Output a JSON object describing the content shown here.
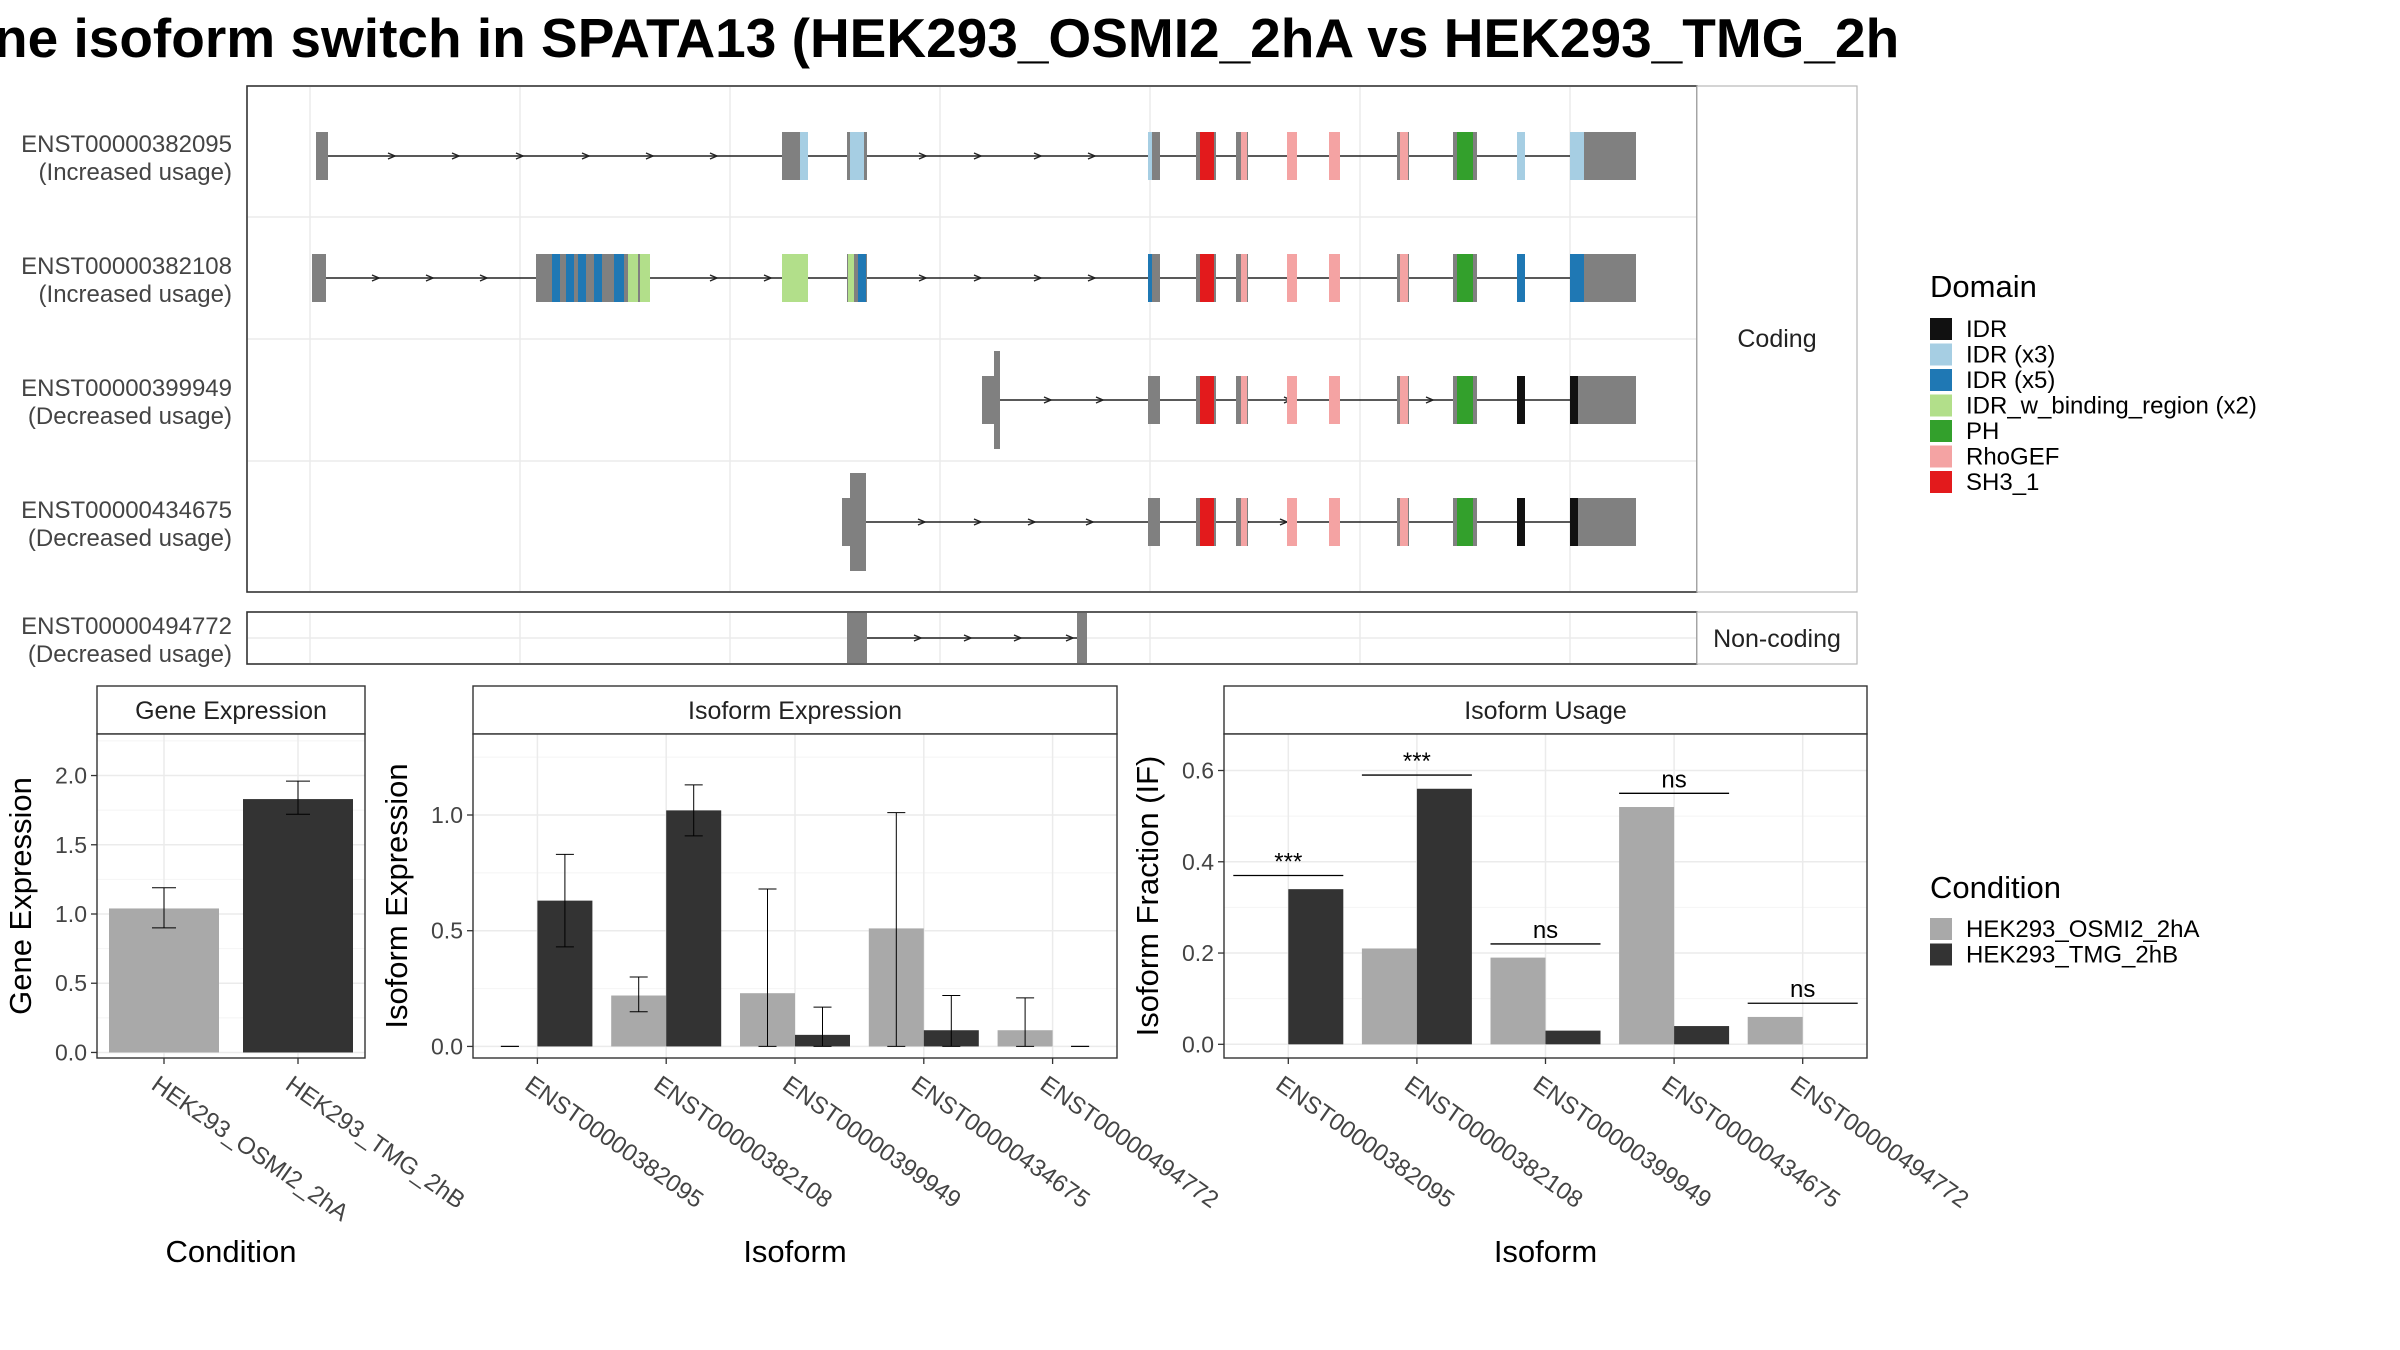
{
  "title": "ne isoform switch in SPATA13 (HEK293_OSMI2_2hA vs HEK293_TMG_2h",
  "colors": {
    "condition_a": "#a9a9a9",
    "condition_b": "#333333",
    "exon": "#808080",
    "IDR": "#111111",
    "IDR (x3)": "#a6cee3",
    "IDR (x5)": "#1f78b4",
    "IDR_w_binding_region (x2)": "#b2df8a",
    "PH": "#33a02c",
    "RhoGEF": "#f4a3a3",
    "SH3_1": "#e31a1c"
  },
  "conditions": [
    "HEK293_OSMI2_2hA",
    "HEK293_TMG_2hB"
  ],
  "legend": {
    "domain_title": "Domain",
    "domain_items": [
      "IDR",
      "IDR (x3)",
      "IDR (x5)",
      "IDR_w_binding_region (x2)",
      "PH",
      "RhoGEF",
      "SH3_1"
    ],
    "condition_title": "Condition"
  },
  "structure": {
    "facet_coding": "Coding",
    "facet_noncoding": "Non-coding",
    "transcripts": [
      {
        "id": "ENST00000382095",
        "usage": "(Increased usage)",
        "group": "coding"
      },
      {
        "id": "ENST00000382108",
        "usage": "(Increased usage)",
        "group": "coding"
      },
      {
        "id": "ENST00000399949",
        "usage": "(Decreased usage)",
        "group": "coding"
      },
      {
        "id": "ENST00000434675",
        "usage": "(Decreased usage)",
        "group": "coding"
      },
      {
        "id": "ENST00000494772",
        "usage": "(Decreased usage)",
        "group": "noncoding"
      }
    ]
  },
  "chart_data": [
    {
      "type": "bar",
      "title": "Gene Expression",
      "xlabel": "Condition",
      "ylabel": "Gene Expression",
      "ylim": [
        -0.04,
        2.3
      ],
      "yticks": [
        "0.0",
        "0.5",
        "1.0",
        "1.5",
        "2.0"
      ],
      "categories": [
        "HEK293_OSMI2_2hA",
        "HEK293_TMG_2hB"
      ],
      "values": [
        1.04,
        1.83
      ],
      "error_low": [
        0.9,
        1.72
      ],
      "error_high": [
        1.19,
        1.96
      ]
    },
    {
      "type": "bar",
      "title": "Isoform Expression",
      "xlabel": "Isoform",
      "ylabel": "Isoform Expression",
      "ylim": [
        -0.05,
        1.35
      ],
      "yticks": [
        "0.0",
        "0.5",
        "1.0"
      ],
      "categories": [
        "ENST00000382095",
        "ENST00000382108",
        "ENST00000399949",
        "ENST00000434675",
        "ENST00000494772"
      ],
      "series": [
        {
          "name": "HEK293_OSMI2_2hA",
          "values": [
            0.0,
            0.22,
            0.23,
            0.51,
            0.07
          ],
          "error_low": [
            0.0,
            0.15,
            0.0,
            0.0,
            0.0
          ],
          "error_high": [
            0.0,
            0.3,
            0.68,
            1.01,
            0.21
          ]
        },
        {
          "name": "HEK293_TMG_2hB",
          "values": [
            0.63,
            1.02,
            0.05,
            0.07,
            0.0
          ],
          "error_low": [
            0.43,
            0.91,
            0.0,
            0.0,
            0.0
          ],
          "error_high": [
            0.83,
            1.13,
            0.17,
            0.22,
            0.0
          ]
        }
      ]
    },
    {
      "type": "bar",
      "title": "Isoform Usage",
      "xlabel": "Isoform",
      "ylabel": "Isoform Fraction (IF)",
      "ylim": [
        -0.03,
        0.68
      ],
      "yticks": [
        "0.0",
        "0.2",
        "0.4",
        "0.6"
      ],
      "categories": [
        "ENST00000382095",
        "ENST00000382108",
        "ENST00000399949",
        "ENST00000434675",
        "ENST00000494772"
      ],
      "series": [
        {
          "name": "HEK293_OSMI2_2hA",
          "values": [
            0.0,
            0.21,
            0.19,
            0.52,
            0.06
          ]
        },
        {
          "name": "HEK293_TMG_2hB",
          "values": [
            0.34,
            0.56,
            0.03,
            0.04,
            0.0
          ]
        }
      ],
      "significance": [
        {
          "label": "***",
          "y": 0.37
        },
        {
          "label": "***",
          "y": 0.59
        },
        {
          "label": "ns",
          "y": 0.22
        },
        {
          "label": "ns",
          "y": 0.55
        },
        {
          "label": "ns",
          "y": 0.09
        }
      ]
    }
  ]
}
